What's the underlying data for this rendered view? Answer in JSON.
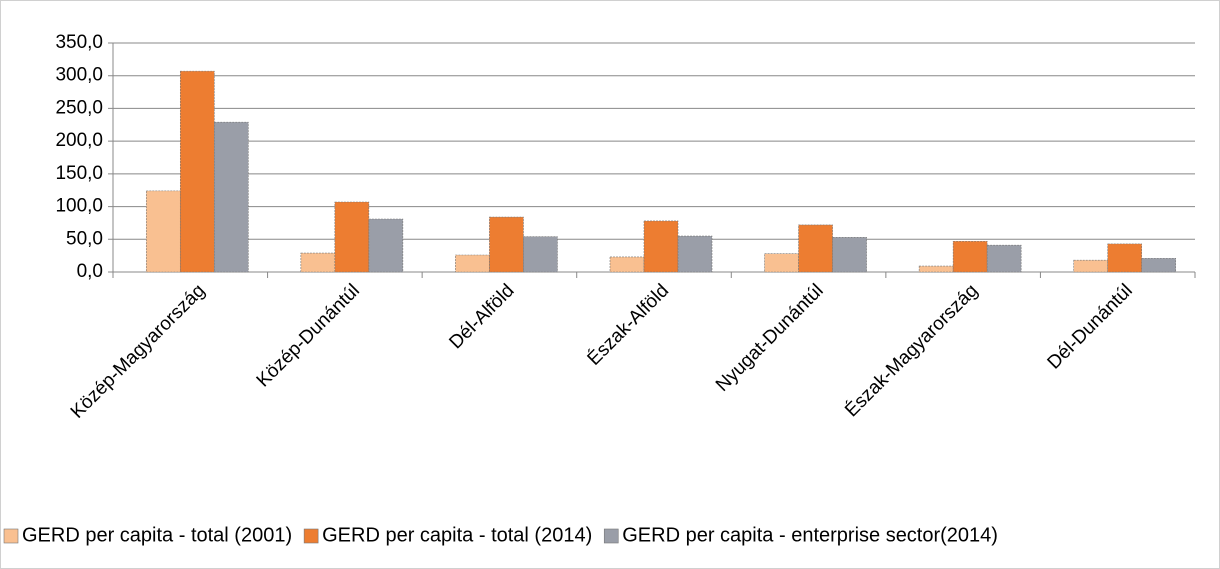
{
  "chart_data": {
    "type": "bar",
    "categories": [
      "Közép-Magyarország",
      "Közép-Dunántúl",
      "Dél-Alföld",
      "Észak-Alföld",
      "Nyugat-Dunántúl",
      "Észak-Magyarország",
      "Dél-Dunántúl"
    ],
    "series": [
      {
        "name": "GERD per capita - total (2001)",
        "color": "#f9c091",
        "values": [
          124,
          29,
          26,
          23,
          28,
          9,
          18
        ]
      },
      {
        "name": "GERD per capita - total (2014)",
        "color": "#ed7d31",
        "values": [
          307,
          107,
          84,
          78,
          72,
          47,
          43
        ]
      },
      {
        "name": "GERD per capita - enterprise sector(2014)",
        "color": "#9a9ea8",
        "values": [
          229,
          81,
          54,
          55,
          53,
          41,
          21
        ]
      }
    ],
    "ylim": [
      0,
      350
    ],
    "yticks": [
      {
        "value": 0,
        "label": "0,0"
      },
      {
        "value": 50,
        "label": "50,0"
      },
      {
        "value": 100,
        "label": "100,0"
      },
      {
        "value": 150,
        "label": "150,0"
      },
      {
        "value": 200,
        "label": "200,0"
      },
      {
        "value": 250,
        "label": "250,0"
      },
      {
        "value": 300,
        "label": "300,0"
      },
      {
        "value": 350,
        "label": "350,0"
      }
    ],
    "grid": true,
    "legend": "bottom"
  }
}
